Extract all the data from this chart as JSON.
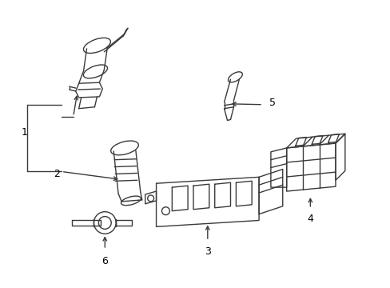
{
  "background_color": "#ffffff",
  "line_color": "#3a3a3a",
  "line_width": 1.0,
  "label_fontsize": 9,
  "fig_width": 4.89,
  "fig_height": 3.6,
  "dpi": 100
}
